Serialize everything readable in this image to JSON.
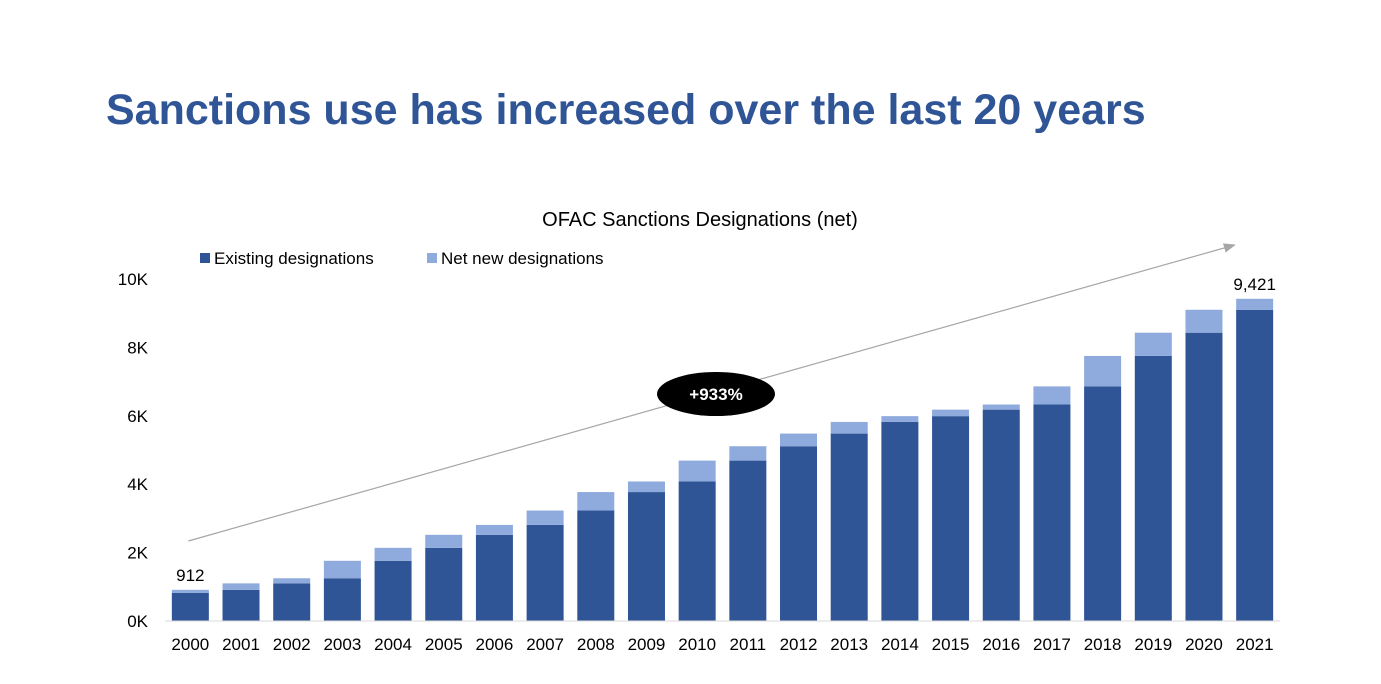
{
  "slide": {
    "title": "Sanctions use has increased over the last 20 years"
  },
  "chart_data": {
    "type": "bar",
    "stacked": true,
    "title": "OFAC Sanctions Designations (net)",
    "xlabel": "",
    "ylabel": "",
    "ylim": [
      0,
      10000
    ],
    "yticks": [
      0,
      2000,
      4000,
      6000,
      8000,
      10000
    ],
    "ytick_labels": [
      "0K",
      "2K",
      "4K",
      "6K",
      "8K",
      "10K"
    ],
    "grid": false,
    "legend_position": "top-left",
    "categories": [
      "2000",
      "2001",
      "2002",
      "2003",
      "2004",
      "2005",
      "2006",
      "2007",
      "2008",
      "2009",
      "2010",
      "2011",
      "2012",
      "2013",
      "2014",
      "2015",
      "2016",
      "2017",
      "2018",
      "2019",
      "2020",
      "2021"
    ],
    "series": [
      {
        "name": "Existing designations",
        "color": "#2f5597",
        "values": [
          820,
          912,
          1100,
          1250,
          1760,
          2140,
          2520,
          2810,
          3230,
          3770,
          4080,
          4690,
          5110,
          5480,
          5820,
          5990,
          6180,
          6330,
          6860,
          7750,
          8430,
          9100
        ]
      },
      {
        "name": "Net new designations",
        "color": "#8faadc",
        "values": [
          92,
          188,
          150,
          510,
          380,
          380,
          290,
          420,
          540,
          310,
          610,
          420,
          370,
          340,
          170,
          190,
          150,
          530,
          890,
          680,
          670,
          321
        ]
      }
    ],
    "data_labels": [
      {
        "category": "2000",
        "text": "912"
      },
      {
        "category": "2021",
        "text": "9,421"
      }
    ],
    "annotation": {
      "text": "+933%",
      "from_category": "2000",
      "to_category": "2021",
      "arrow_color": "#a6a6a6",
      "badge_color": "#000000",
      "badge_text_color": "#ffffff"
    }
  }
}
